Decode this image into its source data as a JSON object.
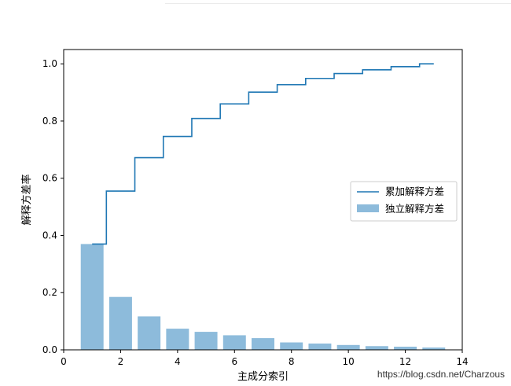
{
  "chart_data": {
    "type": "bar",
    "title": "",
    "xlabel": "主成分索引",
    "ylabel": "解释方差率",
    "xlim": [
      0,
      14
    ],
    "ylim": [
      0,
      1.05
    ],
    "xticks": [
      0,
      2,
      4,
      6,
      8,
      10,
      12,
      14
    ],
    "yticks": [
      0.0,
      0.2,
      0.4,
      0.6,
      0.8,
      1.0
    ],
    "x": [
      1,
      2,
      3,
      4,
      5,
      6,
      7,
      8,
      9,
      10,
      11,
      12,
      13
    ],
    "series": [
      {
        "name": "独立解释方差",
        "type": "bar",
        "color": "#8dbbdb",
        "values": [
          0.37,
          0.185,
          0.117,
          0.074,
          0.063,
          0.051,
          0.041,
          0.026,
          0.022,
          0.017,
          0.013,
          0.011,
          0.008
        ]
      },
      {
        "name": "累加解释方差",
        "type": "step",
        "color": "#1f77b4",
        "values": [
          0.37,
          0.555,
          0.672,
          0.746,
          0.809,
          0.86,
          0.901,
          0.927,
          0.949,
          0.966,
          0.979,
          0.99,
          1.0
        ]
      }
    ],
    "legend_position": "center-right",
    "grid": false
  },
  "watermark": "https://blog.csdn.net/Charzous"
}
